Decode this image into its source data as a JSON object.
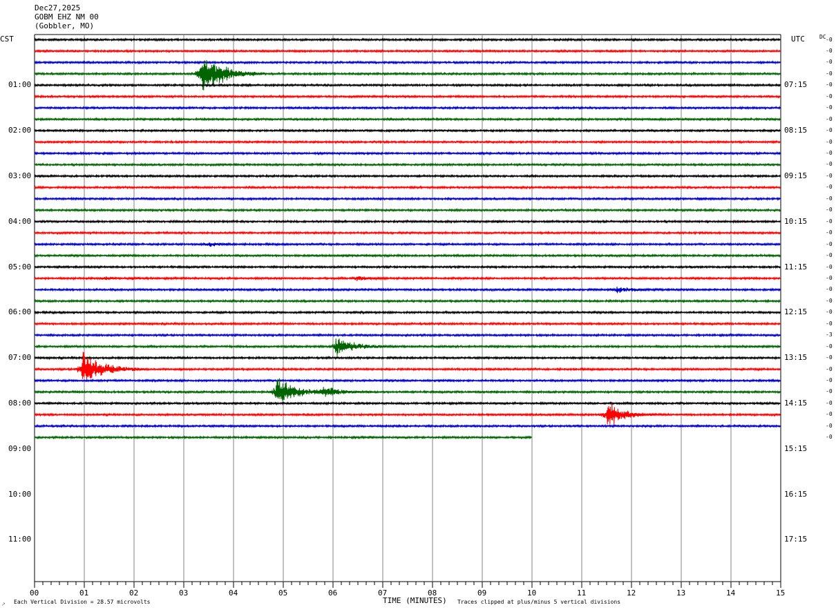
{
  "header": {
    "date": "Dec27,2025",
    "station": "GOBM EHZ NM 00",
    "location": "(Gobbler, MO)"
  },
  "left_zone": "CST",
  "right_zone": "UTC",
  "dc_label": "DC",
  "footer": {
    "left_note": "Each Vertical Division =   28.57 microvolts",
    "xlabel": "TIME (MINUTES)",
    "right_note": "Traces clipped at plus/minus 5 vertical divisions"
  },
  "colors": {
    "black": "#000000",
    "red": "#ff0000",
    "blue": "#0000cc",
    "green": "#006400",
    "grid": "#808080"
  },
  "chart_data": {
    "type": "line",
    "title": "",
    "xlabel": "TIME (MINUTES)",
    "xlim": [
      0,
      15
    ],
    "x_ticks": [
      "00",
      "01",
      "02",
      "03",
      "04",
      "05",
      "06",
      "07",
      "08",
      "09",
      "10",
      "11",
      "12",
      "13",
      "14",
      "15"
    ],
    "rows_per_hour": 4,
    "total_rows": 36,
    "traces_shown": 36,
    "last_trace_end_minute": 10,
    "trace_color_cycle": [
      "black",
      "red",
      "blue",
      "green"
    ],
    "left_hour_labels": [
      "01:00",
      "02:00",
      "03:00",
      "04:00",
      "05:00",
      "06:00",
      "07:00",
      "08:00",
      "09:00",
      "10:00",
      "11:00"
    ],
    "right_hour_labels": [
      "07:15",
      "08:15",
      "09:15",
      "10:15",
      "11:15",
      "12:15",
      "13:15",
      "14:15",
      "15:15",
      "16:15",
      "17:15"
    ],
    "dc_offsets": [
      "0",
      "0",
      "0",
      "0",
      "0",
      "0",
      "0",
      "0",
      "0",
      "0",
      "0",
      "0",
      "0",
      "0",
      "0",
      "0",
      "0",
      "0",
      "0",
      "0",
      "0",
      "0",
      "0",
      "0",
      "0",
      "0",
      "3",
      "0",
      "0",
      "0",
      "0",
      "0",
      "0",
      "0",
      "0",
      "0"
    ],
    "events": [
      {
        "row": 3,
        "minute": 3.35,
        "amplitude": 5.0,
        "duration": 1.3
      },
      {
        "row": 18,
        "minute": 3.5,
        "amplitude": 0.5,
        "duration": 0.7
      },
      {
        "row": 21,
        "minute": 1.4,
        "amplitude": 0.35,
        "duration": 0.5
      },
      {
        "row": 21,
        "minute": 1.95,
        "amplitude": 0.3,
        "duration": 0.5
      },
      {
        "row": 21,
        "minute": 6.45,
        "amplitude": 0.5,
        "duration": 0.8
      },
      {
        "row": 22,
        "minute": 11.7,
        "amplitude": 0.6,
        "duration": 1.0
      },
      {
        "row": 27,
        "minute": 6.05,
        "amplitude": 2.0,
        "duration": 1.2
      },
      {
        "row": 29,
        "minute": 0.95,
        "amplitude": 4.0,
        "duration": 1.3
      },
      {
        "row": 31,
        "minute": 4.85,
        "amplitude": 3.4,
        "duration": 1.2
      },
      {
        "row": 31,
        "minute": 5.8,
        "amplitude": 1.3,
        "duration": 1.0
      },
      {
        "row": 33,
        "minute": 11.5,
        "amplitude": 3.0,
        "duration": 1.0
      },
      {
        "row": 14,
        "minute": 13.4,
        "amplitude": 0.4,
        "duration": 0.1
      },
      {
        "row": 16,
        "minute": 9.3,
        "amplitude": 0.3,
        "duration": 0.2
      }
    ]
  }
}
